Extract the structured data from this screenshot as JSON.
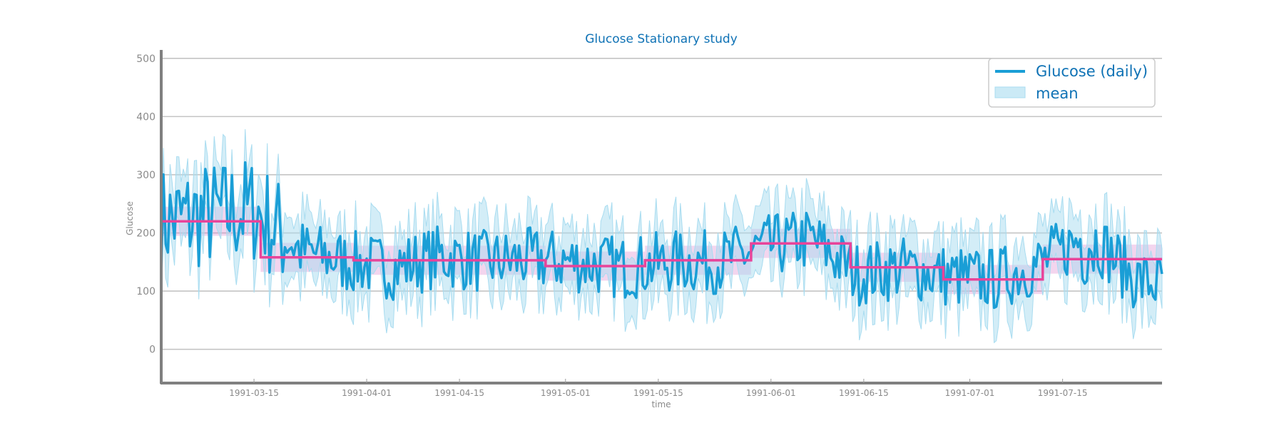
{
  "chart_data": {
    "type": "line",
    "title": "Glucose Stationary study",
    "xlabel": "time",
    "ylabel": "Glucose",
    "ylim": [
      -58,
      512
    ],
    "xlim": [
      "1991-03-01",
      "1991-07-30"
    ],
    "yticks": [
      0,
      100,
      200,
      300,
      400,
      500
    ],
    "xticks": [
      "1991-03-15",
      "1991-04-01",
      "1991-04-15",
      "1991-05-01",
      "1991-05-15",
      "1991-06-01",
      "1991-06-15",
      "1991-07-01",
      "1991-07-15"
    ],
    "grid": "horizontal",
    "legend": {
      "placement": "top-right",
      "entries": [
        "Glucose (daily)",
        "mean"
      ]
    },
    "colors": {
      "series": "#1a9ed6",
      "band": "#a8dcf0",
      "mean": "#e8449a",
      "mean_band": "#d874c8"
    },
    "series": [
      {
        "name": "Glucose (daily)",
        "x": [
          "1991-03-01",
          "1991-03-08",
          "1991-03-15",
          "1991-03-22",
          "1991-03-29",
          "1991-04-05",
          "1991-04-12",
          "1991-04-19",
          "1991-04-26",
          "1991-05-03",
          "1991-05-10",
          "1991-05-17",
          "1991-05-24",
          "1991-05-31",
          "1991-06-07",
          "1991-06-14",
          "1991-06-21",
          "1991-06-28",
          "1991-07-05",
          "1991-07-12",
          "1991-07-19",
          "1991-07-26",
          "1991-07-30"
        ],
        "values": [
          220,
          230,
          240,
          170,
          150,
          140,
          160,
          150,
          155,
          150,
          140,
          150,
          150,
          175,
          190,
          130,
          140,
          125,
          120,
          150,
          200,
          120,
          110
        ]
      }
    ],
    "mean_segments": [
      {
        "start": "1991-03-01",
        "end": "1991-03-16",
        "mean": 220
      },
      {
        "start": "1991-03-16",
        "end": "1991-03-30",
        "mean": 158
      },
      {
        "start": "1991-03-30",
        "end": "1991-04-28",
        "mean": 153
      },
      {
        "start": "1991-04-28",
        "end": "1991-05-13",
        "mean": 143
      },
      {
        "start": "1991-05-13",
        "end": "1991-05-29",
        "mean": 153
      },
      {
        "start": "1991-05-29",
        "end": "1991-06-13",
        "mean": 182
      },
      {
        "start": "1991-06-13",
        "end": "1991-06-27",
        "mean": 141
      },
      {
        "start": "1991-06-27",
        "end": "1991-07-12",
        "mean": 120
      },
      {
        "start": "1991-07-12",
        "end": "1991-07-30",
        "mean": 155
      }
    ]
  }
}
